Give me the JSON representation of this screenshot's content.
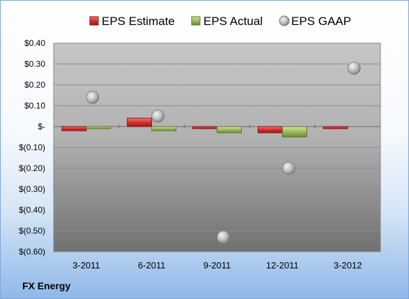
{
  "company": "FX Energy",
  "chart_data": {
    "type": "bar",
    "categories": [
      "3-2011",
      "6-2011",
      "9-2011",
      "12-2011",
      "3-2012"
    ],
    "series": [
      {
        "name": "EPS Estimate",
        "kind": "bar",
        "color": "#d9393b",
        "values": [
          -0.02,
          0.04,
          -0.01,
          -0.03,
          -0.01
        ]
      },
      {
        "name": "EPS Actual",
        "kind": "bar",
        "color": "#9dbb61",
        "values": [
          -0.01,
          -0.02,
          -0.03,
          -0.05,
          null
        ]
      },
      {
        "name": "EPS GAAP",
        "kind": "scatter",
        "color": "#b0b0b0",
        "values": [
          0.14,
          0.05,
          -0.53,
          -0.2,
          0.28
        ]
      }
    ],
    "y_ticks": [
      {
        "value": 0.4,
        "label": "$0.40"
      },
      {
        "value": 0.3,
        "label": "$0.30"
      },
      {
        "value": 0.2,
        "label": "$0.20"
      },
      {
        "value": 0.1,
        "label": "$0.10"
      },
      {
        "value": 0.0,
        "label": "$-"
      },
      {
        "value": -0.1,
        "label": "$(0.10)"
      },
      {
        "value": -0.2,
        "label": "$(0.20)"
      },
      {
        "value": -0.3,
        "label": "$(0.30)"
      },
      {
        "value": -0.4,
        "label": "$(0.40)"
      },
      {
        "value": -0.5,
        "label": "$(0.50)"
      },
      {
        "value": -0.6,
        "label": "$(0.60)"
      }
    ],
    "ylim": [
      -0.6,
      0.4
    ],
    "grid": true,
    "legend": "top"
  }
}
